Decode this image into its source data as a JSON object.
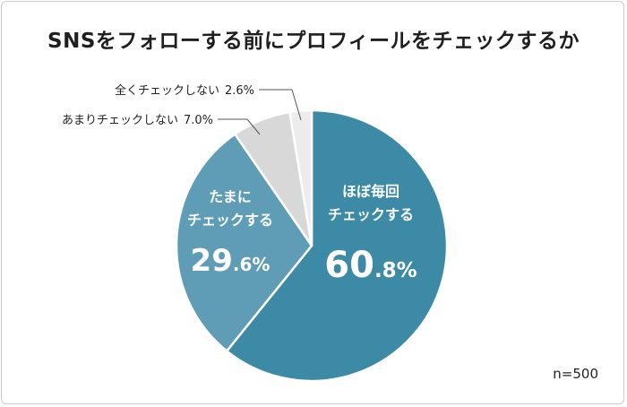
{
  "title": "SNSをフォローする前にプロフィールをチェックするか",
  "sample_size": "n=500",
  "chart_data": {
    "type": "pie",
    "title": "SNSをフォローする前にプロフィールをチェックするか",
    "slices": [
      {
        "label": "ほぼ毎回チェックする",
        "label_lines": [
          "ほぼ毎回",
          "チェックする"
        ],
        "value": 60.8,
        "int_text": "60",
        "dec_text": ".8%",
        "color": "#3d8aa6"
      },
      {
        "label": "たまにチェックする",
        "label_lines": [
          "たまに",
          "チェックする"
        ],
        "value": 29.6,
        "int_text": "29",
        "dec_text": ".6%",
        "color": "#5e9db5"
      },
      {
        "label": "あまりチェックしない",
        "value_text": "7.0%",
        "value": 7.0,
        "color": "#d8d8d8"
      },
      {
        "label": "全くチェックしない",
        "value_text": "2.6%",
        "value": 2.6,
        "color": "#ececec"
      }
    ]
  }
}
